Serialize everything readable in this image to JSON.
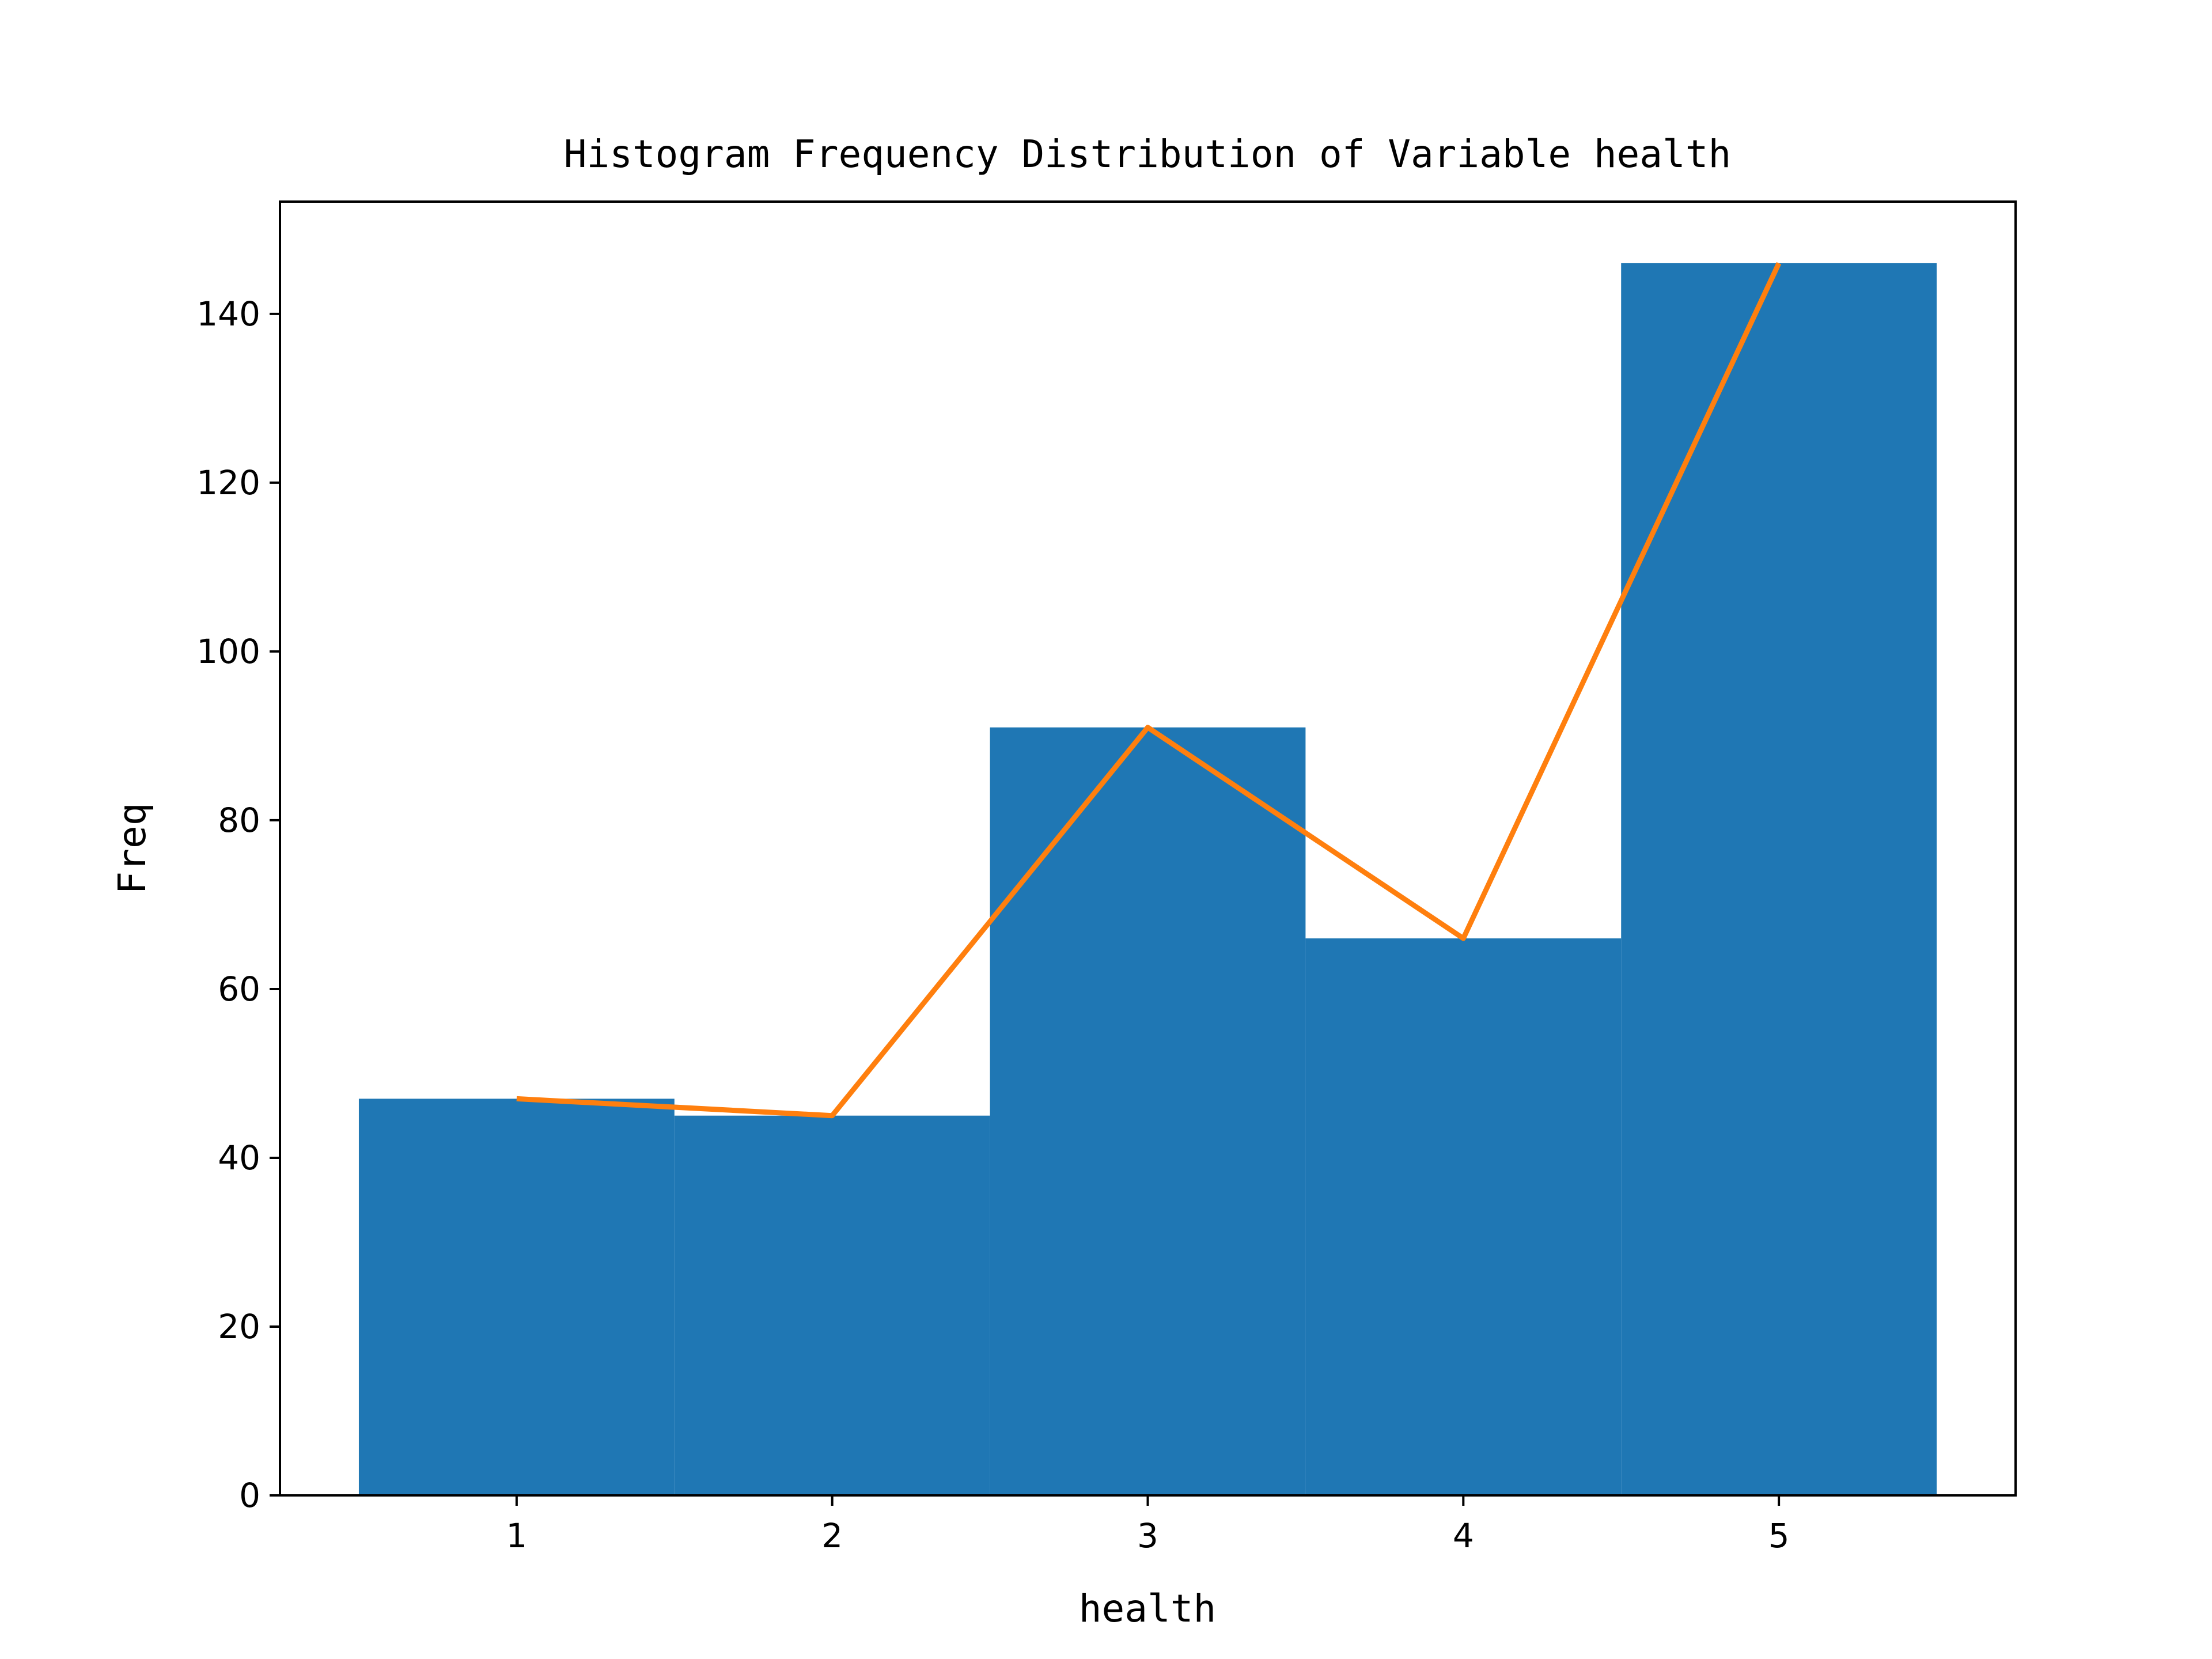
{
  "chart_data": {
    "type": "bar",
    "title": "Histogram Frequency Distribution of Variable health",
    "xlabel": "health",
    "ylabel": "Freq",
    "categories": [
      1,
      2,
      3,
      4,
      5
    ],
    "values": [
      47,
      45,
      91,
      66,
      146
    ],
    "line_values": [
      47,
      45,
      91,
      66,
      146
    ],
    "xlim": [
      0.25,
      5.75
    ],
    "ylim": [
      0,
      153.3
    ],
    "xticks": [
      "1",
      "2",
      "3",
      "4",
      "5"
    ],
    "yticks": [
      0,
      20,
      40,
      60,
      80,
      100,
      120,
      140
    ],
    "grid": false,
    "legend": "none",
    "bar_color": "#1f77b4",
    "line_color": "#ff7f0e"
  }
}
